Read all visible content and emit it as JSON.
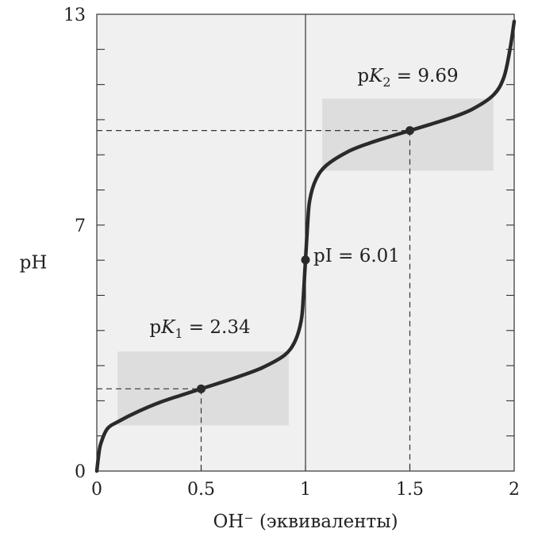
{
  "chart_data": {
    "type": "line",
    "title": "",
    "xlabel": "OH⁻ (эквиваленты)",
    "ylabel": "pH",
    "xlim": [
      0,
      2
    ],
    "ylim": [
      0,
      13
    ],
    "x_ticks": [
      "0",
      "0.5",
      "1",
      "1.5",
      "2"
    ],
    "y_ticks": [
      "0",
      "7",
      "13"
    ],
    "grid": false,
    "series": [
      {
        "x": [
          0.0,
          0.01,
          0.02,
          0.05,
          0.1,
          0.2,
          0.3,
          0.4,
          0.5,
          0.6,
          0.7,
          0.8,
          0.9,
          0.95,
          0.98,
          0.99,
          1.0,
          1.01,
          1.02,
          1.05,
          1.1,
          1.2,
          1.3,
          1.4,
          1.5,
          1.6,
          1.7,
          1.8,
          1.9,
          1.95,
          1.98,
          2.0
        ],
        "y": [
          0.0,
          0.5,
          0.8,
          1.2,
          1.4,
          1.7,
          1.95,
          2.15,
          2.34,
          2.53,
          2.73,
          2.96,
          3.3,
          3.7,
          4.3,
          5.0,
          6.01,
          7.0,
          7.7,
          8.3,
          8.7,
          9.08,
          9.32,
          9.51,
          9.69,
          9.87,
          10.06,
          10.3,
          10.7,
          11.2,
          12.0,
          12.8
        ]
      }
    ],
    "points": [
      {
        "x": 0.5,
        "y": 2.34
      },
      {
        "x": 1.0,
        "y": 6.01
      },
      {
        "x": 1.5,
        "y": 9.69
      }
    ],
    "buffer_regions": [
      {
        "x": [
          0.1,
          0.92
        ],
        "y": [
          1.3,
          3.4
        ]
      },
      {
        "x": [
          1.08,
          1.9
        ],
        "y": [
          8.55,
          10.6
        ]
      }
    ],
    "annotations": {
      "pk1_prefix": "p",
      "pk1_var": "K",
      "pk1_sub": "1",
      "pk1_rest": " = 2.34",
      "pk2_prefix": "p",
      "pk2_var": "K",
      "pk2_sub": "2",
      "pk2_rest": " = 9.69",
      "pi": "pI = 6.01"
    },
    "colors": {
      "plot_bg": "#f0f0f0",
      "buffer": "#dddddd",
      "curve": "#2a2a2a",
      "guide": "#333333"
    }
  }
}
